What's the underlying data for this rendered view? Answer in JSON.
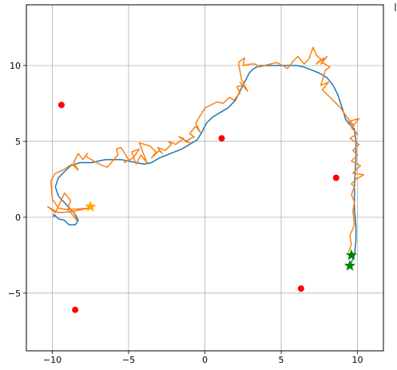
{
  "chart_data": {
    "type": "line",
    "title": "",
    "xlabel": "",
    "ylabel": "",
    "xlim": [
      -11.7,
      11.7
    ],
    "ylim": [
      -8.8,
      14.0
    ],
    "grid": true,
    "x_ticks": [
      -10,
      -5,
      0,
      5,
      10
    ],
    "x_tick_labels": [
      "−10",
      "−5",
      "0",
      "5",
      "10"
    ],
    "y_ticks": [
      -5,
      0,
      5,
      10
    ],
    "y_tick_labels": [
      "−5",
      "0",
      "5",
      "10"
    ],
    "colors": {
      "path": "#1f77b4",
      "noisy": "#ff7f0e",
      "landmarks": "#ff0000",
      "goal": "#008000",
      "start": "#ffa500"
    },
    "series": [
      {
        "style": "line",
        "color": "#1f77b4",
        "x": [
          -9.9,
          -9.9,
          -9.6,
          -9.2,
          -8.9,
          -8.5,
          -8.3,
          -8.5,
          -9.6,
          -9.8,
          -9.7,
          -9.6,
          -9.4,
          -9.2,
          -9.0,
          -8.8,
          -8.5,
          -8.2,
          -7.8,
          -7.4,
          -7.0,
          -6.5,
          -6.0,
          -5.5,
          -5.0,
          -4.5,
          -4.0,
          -3.5,
          -3.0,
          -2.5,
          -2.0,
          -1.5,
          -1.0,
          -0.5,
          -0.2,
          0.1,
          0.5,
          1.0,
          1.5,
          2.0,
          2.3,
          2.6,
          2.9,
          3.2,
          3.6,
          4.0,
          4.5,
          5.0,
          5.5,
          6.0,
          6.5,
          7.0,
          7.5,
          8.0,
          8.4,
          8.7,
          8.9,
          9.1,
          9.2,
          9.4,
          9.6,
          9.8,
          9.9,
          9.9,
          9.8,
          9.8,
          9.9,
          9.9,
          9.8,
          9.5
        ],
        "y": [
          0.0,
          0.2,
          -0.1,
          -0.2,
          -0.5,
          -0.5,
          -0.2,
          0.2,
          1.4,
          2.0,
          2.3,
          2.6,
          2.8,
          3.0,
          3.2,
          3.4,
          3.5,
          3.6,
          3.6,
          3.6,
          3.7,
          3.8,
          3.8,
          3.8,
          3.7,
          3.6,
          3.5,
          3.6,
          3.9,
          4.1,
          4.3,
          4.5,
          4.8,
          5.1,
          5.6,
          6.2,
          6.6,
          6.9,
          7.2,
          7.7,
          8.3,
          8.9,
          9.5,
          9.8,
          10.0,
          10.0,
          10.0,
          10.0,
          10.0,
          10.0,
          9.9,
          9.7,
          9.5,
          9.2,
          8.7,
          8.1,
          7.5,
          6.9,
          6.5,
          6.2,
          6.0,
          5.8,
          5.0,
          3.8,
          2.0,
          0.5,
          -0.5,
          -1.5,
          -2.5,
          -3.2
        ]
      },
      {
        "style": "line",
        "color": "#ff7f0e",
        "x": [
          -8.5,
          -9.6,
          -10.3,
          -9.8,
          -9.2,
          -8.8,
          -9.0,
          -8.7,
          -8.4,
          -8.6,
          -7.6,
          -9.0,
          -9.6,
          -10.0,
          -10.1,
          -9.8,
          -9.3,
          -8.7,
          -8.3,
          -8.6,
          -8.3,
          -8.0,
          -7.7,
          -7.8,
          -7.1,
          -6.7,
          -6.4,
          -5.7,
          -5.8,
          -5.5,
          -5.0,
          -5.3,
          -4.7,
          -4.3,
          -4.8,
          -4.5,
          -4.2,
          -3.8,
          -4.3,
          -3.6,
          -3.2,
          -3.5,
          -3.0,
          -2.8,
          -3.1,
          -2.6,
          -2.2,
          -2.4,
          -1.9,
          -1.4,
          -1.7,
          -1.0,
          -1.3,
          -0.7,
          -1.0,
          -0.6,
          -0.3,
          -0.6,
          0.0,
          0.4,
          0.8,
          1.2,
          1.6,
          1.9,
          2.3,
          2.1,
          2.5,
          2.3,
          2.8,
          2.4,
          2.2,
          2.6,
          2.5,
          3.0,
          3.3,
          3.6,
          3.9,
          4.3,
          4.7,
          5.1,
          5.4,
          5.8,
          6.1,
          6.5,
          6.8,
          7.1,
          7.3,
          7.6,
          7.3,
          7.8,
          7.6,
          8.0,
          7.7,
          8.2,
          7.9,
          7.6,
          8.1,
          7.7,
          8.4,
          8.9,
          9.3,
          9.8,
          9.4,
          10.1,
          9.6,
          10.0,
          9.5,
          10.1,
          9.7,
          10.0,
          9.6,
          10.2,
          9.7,
          10.4,
          9.9,
          10.0,
          9.6,
          9.8,
          9.6,
          9.8,
          9.7,
          9.8,
          9.5,
          9.6,
          9.4
        ],
        "y": [
          0.4,
          0.3,
          0.7,
          0.3,
          1.6,
          1.1,
          0.5,
          0.2,
          -0.2,
          0.4,
          0.6,
          0.5,
          0.6,
          1.2,
          2.4,
          2.9,
          3.1,
          3.5,
          3.1,
          3.6,
          4.2,
          3.8,
          4.2,
          4.0,
          3.6,
          3.4,
          3.3,
          4.1,
          4.5,
          4.6,
          3.8,
          3.6,
          3.9,
          4.5,
          4.3,
          3.5,
          4.1,
          3.6,
          4.9,
          4.7,
          4.3,
          3.9,
          4.4,
          4.2,
          4.6,
          4.4,
          4.8,
          5.0,
          4.8,
          5.2,
          5.3,
          4.9,
          5.0,
          5.3,
          5.5,
          6.0,
          5.6,
          6.2,
          7.2,
          7.4,
          7.6,
          7.5,
          7.9,
          7.7,
          8.2,
          8.6,
          8.7,
          8.9,
          8.3,
          9.1,
          10.2,
          10.5,
          10.0,
          10.1,
          10.1,
          9.9,
          10.0,
          10.1,
          10.2,
          10.0,
          9.8,
          10.3,
          10.6,
          10.1,
          10.4,
          11.2,
          10.7,
          10.4,
          10.1,
          10.5,
          10.1,
          10.6,
          10.2,
          9.9,
          9.7,
          8.7,
          8.9,
          8.4,
          7.7,
          7.2,
          6.6,
          6.0,
          6.3,
          6.5,
          5.9,
          5.5,
          5.2,
          4.8,
          4.4,
          4.1,
          3.7,
          3.4,
          2.9,
          2.8,
          2.5,
          2.6,
          2.2,
          2.0,
          1.5,
          1.0,
          0.4,
          -0.5,
          -1.2,
          -1.8,
          -2.3
        ]
      },
      {
        "style": "scatter",
        "color": "#ff0000",
        "x": [
          -9.4,
          1.1,
          8.6,
          6.3,
          -8.5
        ],
        "y": [
          7.4,
          5.2,
          2.6,
          -4.7,
          -6.1
        ]
      },
      {
        "style": "star",
        "color": "#008000",
        "x": [
          9.6,
          9.5
        ],
        "y": [
          -2.5,
          -3.2
        ]
      },
      {
        "style": "star",
        "color": "#ffa500",
        "x": [
          -7.5
        ],
        "y": [
          0.7
        ]
      }
    ]
  }
}
